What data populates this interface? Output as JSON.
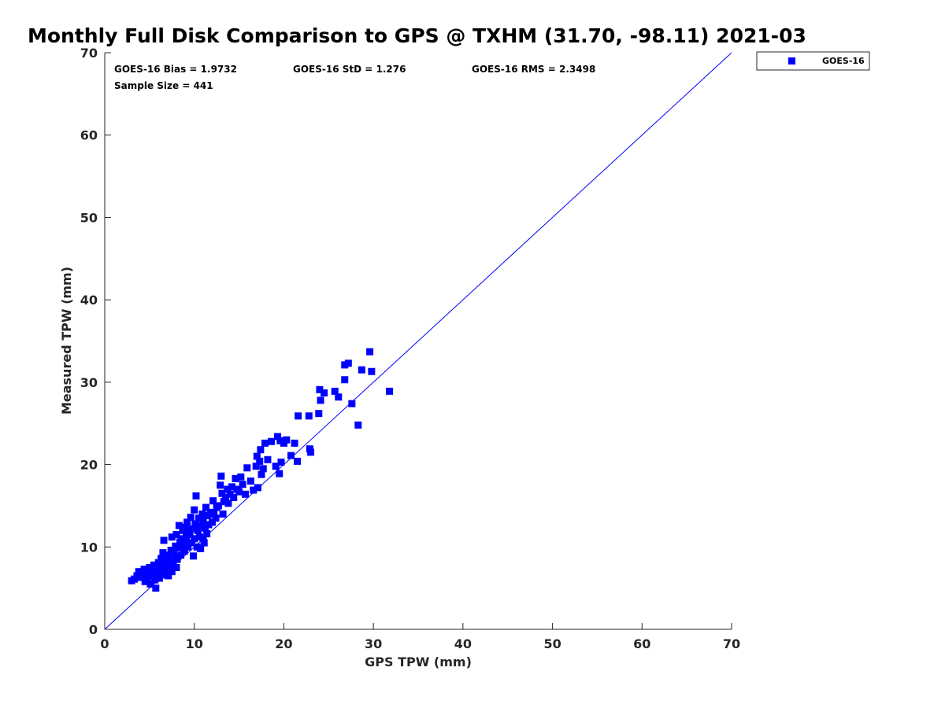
{
  "chart_data": {
    "type": "scatter",
    "title": "Monthly Full Disk Comparison to GPS @ TXHM (31.70, -98.11) 2021-03",
    "xlabel": "GPS TPW (mm)",
    "ylabel": "Measured TPW (mm)",
    "xlim": [
      0,
      70
    ],
    "ylim": [
      0,
      70
    ],
    "xticks": [
      "0",
      "10",
      "20",
      "30",
      "40",
      "50",
      "60",
      "70"
    ],
    "yticks": [
      "0",
      "10",
      "20",
      "30",
      "40",
      "50",
      "60",
      "70"
    ],
    "grid": false,
    "legend_position": "outside top-right",
    "stats": {
      "bias": "GOES-16 Bias = 1.9732",
      "std": "GOES-16 StD = 1.276",
      "rms": "GOES-16 RMS = 2.3498",
      "sample_size": "Sample Size = 441"
    },
    "reference_line": {
      "x": [
        0,
        70
      ],
      "y": [
        0,
        70
      ],
      "color": "#0000ff"
    },
    "series": [
      {
        "name": "GOES-16",
        "color": "#0000ff",
        "marker": "square",
        "points": [
          [
            3.0,
            5.9
          ],
          [
            3.3,
            6.1
          ],
          [
            3.6,
            6.5
          ],
          [
            3.8,
            7.0
          ],
          [
            4.0,
            6.3
          ],
          [
            4.2,
            6.8
          ],
          [
            4.4,
            7.3
          ],
          [
            4.5,
            5.8
          ],
          [
            4.7,
            6.1
          ],
          [
            4.8,
            6.9
          ],
          [
            5.0,
            7.5
          ],
          [
            5.1,
            5.5
          ],
          [
            5.2,
            6.4
          ],
          [
            5.4,
            7.0
          ],
          [
            5.5,
            7.8
          ],
          [
            5.6,
            6.0
          ],
          [
            5.7,
            5.0
          ],
          [
            5.8,
            6.6
          ],
          [
            5.9,
            7.3
          ],
          [
            6.0,
            8.1
          ],
          [
            6.1,
            6.2
          ],
          [
            6.2,
            7.0
          ],
          [
            6.3,
            8.6
          ],
          [
            6.4,
            7.6
          ],
          [
            6.5,
            9.3
          ],
          [
            6.6,
            10.8
          ],
          [
            6.6,
            6.6
          ],
          [
            6.7,
            7.9
          ],
          [
            6.8,
            8.4
          ],
          [
            6.9,
            7.1
          ],
          [
            7.0,
            9.0
          ],
          [
            7.1,
            6.5
          ],
          [
            7.2,
            7.6
          ],
          [
            7.3,
            8.2
          ],
          [
            7.4,
            9.6
          ],
          [
            7.5,
            11.2
          ],
          [
            7.5,
            7.0
          ],
          [
            7.6,
            8.0
          ],
          [
            7.7,
            9.2
          ],
          [
            7.8,
            8.7
          ],
          [
            7.9,
            10.1
          ],
          [
            8.0,
            11.5
          ],
          [
            8.0,
            7.5
          ],
          [
            8.1,
            8.5
          ],
          [
            8.2,
            9.9
          ],
          [
            8.3,
            12.6
          ],
          [
            8.4,
            10.6
          ],
          [
            8.5,
            9.0
          ],
          [
            8.6,
            11.0
          ],
          [
            8.7,
            12.0
          ],
          [
            8.8,
            10.2
          ],
          [
            8.9,
            9.5
          ],
          [
            9.0,
            12.4
          ],
          [
            9.0,
            10.8
          ],
          [
            9.1,
            11.3
          ],
          [
            9.2,
            13.0
          ],
          [
            9.3,
            10.0
          ],
          [
            9.4,
            12.0
          ],
          [
            9.5,
            11.5
          ],
          [
            9.6,
            13.6
          ],
          [
            9.7,
            10.5
          ],
          [
            9.8,
            12.2
          ],
          [
            9.9,
            8.9
          ],
          [
            10.0,
            11.0
          ],
          [
            10.0,
            14.5
          ],
          [
            10.1,
            12.8
          ],
          [
            10.2,
            16.2
          ],
          [
            10.3,
            10.0
          ],
          [
            10.4,
            12.0
          ],
          [
            10.5,
            13.5
          ],
          [
            10.6,
            11.2
          ],
          [
            10.7,
            9.8
          ],
          [
            10.8,
            12.6
          ],
          [
            10.9,
            14.0
          ],
          [
            11.0,
            11.0
          ],
          [
            11.0,
            13.2
          ],
          [
            11.1,
            10.5
          ],
          [
            11.2,
            12.3
          ],
          [
            11.3,
            14.8
          ],
          [
            11.4,
            11.6
          ],
          [
            11.5,
            13.8
          ],
          [
            11.6,
            12.7
          ],
          [
            11.8,
            14.2
          ],
          [
            12.0,
            13.0
          ],
          [
            12.1,
            15.6
          ],
          [
            12.2,
            14.0
          ],
          [
            12.4,
            13.5
          ],
          [
            12.5,
            14.8
          ],
          [
            12.7,
            15.0
          ],
          [
            12.9,
            17.5
          ],
          [
            13.0,
            18.6
          ],
          [
            13.1,
            16.5
          ],
          [
            13.2,
            14.0
          ],
          [
            13.3,
            15.5
          ],
          [
            13.5,
            16.0
          ],
          [
            13.7,
            17.0
          ],
          [
            13.8,
            15.3
          ],
          [
            14.0,
            16.4
          ],
          [
            14.2,
            17.3
          ],
          [
            14.4,
            16.0
          ],
          [
            14.6,
            18.3
          ],
          [
            14.8,
            17.0
          ],
          [
            15.0,
            16.7
          ],
          [
            15.2,
            18.5
          ],
          [
            15.4,
            17.6
          ],
          [
            15.7,
            16.4
          ],
          [
            15.9,
            19.6
          ],
          [
            16.3,
            18.0
          ],
          [
            16.6,
            16.9
          ],
          [
            16.9,
            19.8
          ],
          [
            17.0,
            21.0
          ],
          [
            17.1,
            17.2
          ],
          [
            17.3,
            20.4
          ],
          [
            17.4,
            21.8
          ],
          [
            17.5,
            18.8
          ],
          [
            17.7,
            19.5
          ],
          [
            17.9,
            22.6
          ],
          [
            18.2,
            20.6
          ],
          [
            18.6,
            22.8
          ],
          [
            19.1,
            19.8
          ],
          [
            19.3,
            23.4
          ],
          [
            19.5,
            18.9
          ],
          [
            19.6,
            22.9
          ],
          [
            19.7,
            20.3
          ],
          [
            20.0,
            22.6
          ],
          [
            20.3,
            23.0
          ],
          [
            20.8,
            21.1
          ],
          [
            21.2,
            22.6
          ],
          [
            21.5,
            20.4
          ],
          [
            21.6,
            25.9
          ],
          [
            22.8,
            25.9
          ],
          [
            22.9,
            21.9
          ],
          [
            23.0,
            21.5
          ],
          [
            23.9,
            26.2
          ],
          [
            24.0,
            29.1
          ],
          [
            24.1,
            27.8
          ],
          [
            24.5,
            28.7
          ],
          [
            25.7,
            28.9
          ],
          [
            26.1,
            28.2
          ],
          [
            26.8,
            30.3
          ],
          [
            26.8,
            32.1
          ],
          [
            27.2,
            32.3
          ],
          [
            27.6,
            27.4
          ],
          [
            28.3,
            24.8
          ],
          [
            28.7,
            31.5
          ],
          [
            29.6,
            33.7
          ],
          [
            29.8,
            31.3
          ],
          [
            31.8,
            28.9
          ]
        ]
      }
    ]
  }
}
